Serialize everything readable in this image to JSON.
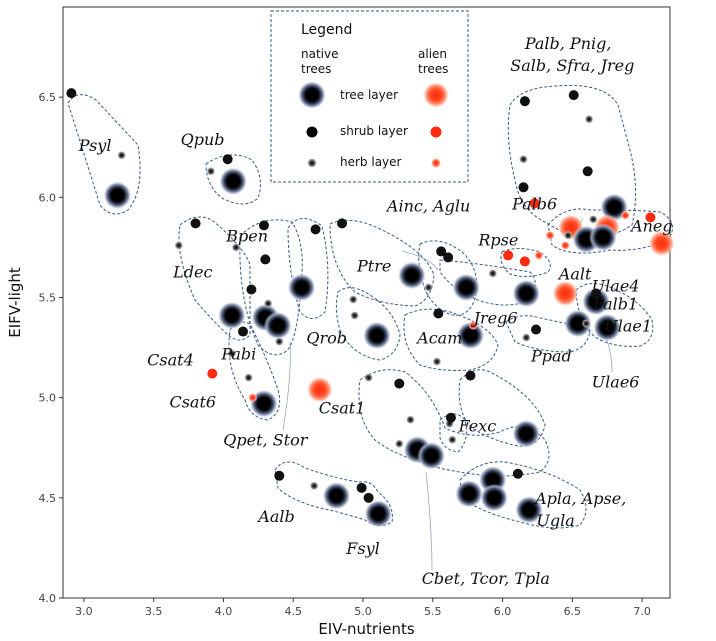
{
  "chart_data": {
    "type": "scatter",
    "xlabel": "EIV-nutrients",
    "ylabel": "EIFV-light",
    "xlim": [
      2.85,
      7.2
    ],
    "ylim": [
      4.0,
      6.95
    ],
    "xticks": [
      "3.0",
      "3.5",
      "4.0",
      "4.5",
      "5.0",
      "5.5",
      "6.0",
      "6.5",
      "7.0"
    ],
    "yticks": [
      "4.0",
      "4.5",
      "5.0",
      "5.5",
      "6.0",
      "6.5"
    ],
    "grid": false,
    "legend": {
      "title": "Legend",
      "col_native": "native\ntrees",
      "col_alien": "alien\ntrees",
      "rows": [
        "tree layer",
        "shrub layer",
        "herb layer"
      ],
      "placement": "top-center"
    },
    "colors": {
      "native": "#111111",
      "alien": "#ff2a10",
      "outline": "#3a5a8a"
    },
    "points": [
      {
        "x": 2.91,
        "y": 6.52,
        "layer": "shrub",
        "origin": "native"
      },
      {
        "x": 3.27,
        "y": 6.21,
        "layer": "herb",
        "origin": "native"
      },
      {
        "x": 3.24,
        "y": 6.01,
        "layer": "tree",
        "origin": "native"
      },
      {
        "x": 4.03,
        "y": 6.19,
        "layer": "shrub",
        "origin": "native"
      },
      {
        "x": 3.91,
        "y": 6.13,
        "layer": "herb",
        "origin": "native"
      },
      {
        "x": 4.07,
        "y": 6.08,
        "layer": "tree",
        "origin": "native"
      },
      {
        "x": 3.8,
        "y": 5.87,
        "layer": "shrub",
        "origin": "native"
      },
      {
        "x": 3.68,
        "y": 5.76,
        "layer": "herb",
        "origin": "native"
      },
      {
        "x": 4.06,
        "y": 5.41,
        "layer": "tree",
        "origin": "native"
      },
      {
        "x": 4.29,
        "y": 5.86,
        "layer": "shrub",
        "origin": "native"
      },
      {
        "x": 4.09,
        "y": 5.75,
        "layer": "herb",
        "origin": "native"
      },
      {
        "x": 4.3,
        "y": 5.69,
        "layer": "shrub",
        "origin": "native"
      },
      {
        "x": 4.2,
        "y": 5.54,
        "layer": "shrub",
        "origin": "native"
      },
      {
        "x": 4.32,
        "y": 5.47,
        "layer": "herb",
        "origin": "native"
      },
      {
        "x": 4.3,
        "y": 5.4,
        "layer": "tree",
        "origin": "native"
      },
      {
        "x": 4.39,
        "y": 5.36,
        "layer": "tree",
        "origin": "native"
      },
      {
        "x": 4.4,
        "y": 5.28,
        "layer": "herb",
        "origin": "native"
      },
      {
        "x": 4.14,
        "y": 5.33,
        "layer": "shrub",
        "origin": "native"
      },
      {
        "x": 4.06,
        "y": 5.22,
        "layer": "herb",
        "origin": "native"
      },
      {
        "x": 4.18,
        "y": 5.1,
        "layer": "herb",
        "origin": "native"
      },
      {
        "x": 4.29,
        "y": 4.97,
        "layer": "tree",
        "origin": "native"
      },
      {
        "x": 4.21,
        "y": 5.0,
        "layer": "herb",
        "origin": "alien"
      },
      {
        "x": 3.92,
        "y": 5.12,
        "layer": "shrub",
        "origin": "alien"
      },
      {
        "x": 4.66,
        "y": 5.84,
        "layer": "shrub",
        "origin": "native"
      },
      {
        "x": 4.56,
        "y": 5.55,
        "layer": "tree",
        "origin": "native"
      },
      {
        "x": 4.69,
        "y": 5.04,
        "layer": "tree",
        "origin": "alien"
      },
      {
        "x": 4.85,
        "y": 5.87,
        "layer": "shrub",
        "origin": "native"
      },
      {
        "x": 4.93,
        "y": 5.49,
        "layer": "herb",
        "origin": "native"
      },
      {
        "x": 4.94,
        "y": 5.41,
        "layer": "herb",
        "origin": "native"
      },
      {
        "x": 5.1,
        "y": 5.31,
        "layer": "tree",
        "origin": "native"
      },
      {
        "x": 5.35,
        "y": 5.61,
        "layer": "tree",
        "origin": "native"
      },
      {
        "x": 5.56,
        "y": 5.73,
        "layer": "shrub",
        "origin": "native"
      },
      {
        "x": 5.61,
        "y": 5.7,
        "layer": "shrub",
        "origin": "native"
      },
      {
        "x": 5.47,
        "y": 5.55,
        "layer": "herb",
        "origin": "native"
      },
      {
        "x": 5.74,
        "y": 5.55,
        "layer": "tree",
        "origin": "native"
      },
      {
        "x": 5.54,
        "y": 5.42,
        "layer": "shrub",
        "origin": "native"
      },
      {
        "x": 5.77,
        "y": 5.31,
        "layer": "tree",
        "origin": "native"
      },
      {
        "x": 5.79,
        "y": 5.36,
        "layer": "herb",
        "origin": "alien"
      },
      {
        "x": 5.53,
        "y": 5.18,
        "layer": "herb",
        "origin": "native"
      },
      {
        "x": 5.26,
        "y": 5.07,
        "layer": "shrub",
        "origin": "native"
      },
      {
        "x": 5.04,
        "y": 5.1,
        "layer": "herb",
        "origin": "native"
      },
      {
        "x": 5.34,
        "y": 4.89,
        "layer": "herb",
        "origin": "native"
      },
      {
        "x": 5.26,
        "y": 4.77,
        "layer": "herb",
        "origin": "native"
      },
      {
        "x": 5.39,
        "y": 4.74,
        "layer": "tree",
        "origin": "native"
      },
      {
        "x": 5.49,
        "y": 4.71,
        "layer": "tree",
        "origin": "native"
      },
      {
        "x": 5.77,
        "y": 5.11,
        "layer": "shrub",
        "origin": "native"
      },
      {
        "x": 5.63,
        "y": 4.9,
        "layer": "shrub",
        "origin": "native"
      },
      {
        "x": 5.62,
        "y": 4.87,
        "layer": "herb",
        "origin": "native"
      },
      {
        "x": 5.64,
        "y": 4.79,
        "layer": "herb",
        "origin": "native"
      },
      {
        "x": 6.17,
        "y": 4.82,
        "layer": "tree",
        "origin": "native"
      },
      {
        "x": 5.76,
        "y": 4.52,
        "layer": "tree",
        "origin": "native"
      },
      {
        "x": 5.93,
        "y": 4.59,
        "layer": "tree",
        "origin": "native"
      },
      {
        "x": 5.94,
        "y": 4.5,
        "layer": "tree",
        "origin": "native"
      },
      {
        "x": 6.11,
        "y": 4.62,
        "layer": "shrub",
        "origin": "native"
      },
      {
        "x": 6.19,
        "y": 4.44,
        "layer": "tree",
        "origin": "native"
      },
      {
        "x": 4.4,
        "y": 4.61,
        "layer": "shrub",
        "origin": "native"
      },
      {
        "x": 4.65,
        "y": 4.56,
        "layer": "herb",
        "origin": "native"
      },
      {
        "x": 4.81,
        "y": 4.51,
        "layer": "tree",
        "origin": "native"
      },
      {
        "x": 4.99,
        "y": 4.55,
        "layer": "shrub",
        "origin": "native"
      },
      {
        "x": 5.04,
        "y": 4.5,
        "layer": "shrub",
        "origin": "native"
      },
      {
        "x": 5.11,
        "y": 4.42,
        "layer": "tree",
        "origin": "native"
      },
      {
        "x": 6.16,
        "y": 6.48,
        "layer": "shrub",
        "origin": "native"
      },
      {
        "x": 6.51,
        "y": 6.51,
        "layer": "shrub",
        "origin": "native"
      },
      {
        "x": 6.62,
        "y": 6.39,
        "layer": "herb",
        "origin": "native"
      },
      {
        "x": 6.15,
        "y": 6.19,
        "layer": "herb",
        "origin": "native"
      },
      {
        "x": 6.61,
        "y": 6.13,
        "layer": "shrub",
        "origin": "native"
      },
      {
        "x": 6.15,
        "y": 6.05,
        "layer": "shrub",
        "origin": "native"
      },
      {
        "x": 6.23,
        "y": 5.97,
        "layer": "shrub",
        "origin": "alien"
      },
      {
        "x": 6.8,
        "y": 5.95,
        "layer": "tree",
        "origin": "native"
      },
      {
        "x": 6.88,
        "y": 5.91,
        "layer": "herb",
        "origin": "alien"
      },
      {
        "x": 7.06,
        "y": 5.9,
        "layer": "shrub",
        "origin": "alien"
      },
      {
        "x": 6.75,
        "y": 5.85,
        "layer": "tree",
        "origin": "alien"
      },
      {
        "x": 6.49,
        "y": 5.85,
        "layer": "tree",
        "origin": "alien"
      },
      {
        "x": 6.65,
        "y": 5.89,
        "layer": "herb",
        "origin": "native"
      },
      {
        "x": 6.6,
        "y": 5.79,
        "layer": "tree",
        "origin": "native"
      },
      {
        "x": 6.72,
        "y": 5.8,
        "layer": "tree",
        "origin": "native"
      },
      {
        "x": 6.34,
        "y": 5.81,
        "layer": "herb",
        "origin": "alien"
      },
      {
        "x": 6.47,
        "y": 5.81,
        "layer": "herb",
        "origin": "native"
      },
      {
        "x": 6.45,
        "y": 5.76,
        "layer": "herb",
        "origin": "alien"
      },
      {
        "x": 7.14,
        "y": 5.77,
        "layer": "tree",
        "origin": "alien"
      },
      {
        "x": 6.04,
        "y": 5.71,
        "layer": "shrub",
        "origin": "alien"
      },
      {
        "x": 6.16,
        "y": 5.68,
        "layer": "shrub",
        "origin": "alien"
      },
      {
        "x": 6.26,
        "y": 5.71,
        "layer": "herb",
        "origin": "alien"
      },
      {
        "x": 5.93,
        "y": 5.62,
        "layer": "herb",
        "origin": "native"
      },
      {
        "x": 6.17,
        "y": 5.52,
        "layer": "tree",
        "origin": "native"
      },
      {
        "x": 6.45,
        "y": 5.52,
        "layer": "tree",
        "origin": "alien"
      },
      {
        "x": 6.67,
        "y": 5.52,
        "layer": "shrub",
        "origin": "native"
      },
      {
        "x": 6.67,
        "y": 5.48,
        "layer": "tree",
        "origin": "native"
      },
      {
        "x": 6.6,
        "y": 5.37,
        "layer": "herb",
        "origin": "native"
      },
      {
        "x": 6.54,
        "y": 5.37,
        "layer": "tree",
        "origin": "native"
      },
      {
        "x": 6.75,
        "y": 5.35,
        "layer": "tree",
        "origin": "native"
      },
      {
        "x": 6.24,
        "y": 5.34,
        "layer": "shrub",
        "origin": "native"
      },
      {
        "x": 6.17,
        "y": 5.3,
        "layer": "herb",
        "origin": "native"
      }
    ],
    "labels": [
      {
        "text": "Psyl",
        "x": 3.08,
        "y": 6.23
      },
      {
        "text": "Qpub",
        "x": 3.85,
        "y": 6.26
      },
      {
        "text": "Bpen",
        "x": 4.17,
        "y": 5.78
      },
      {
        "text": "Ldec",
        "x": 3.78,
        "y": 5.6
      },
      {
        "text": "Pabi",
        "x": 4.11,
        "y": 5.19
      },
      {
        "text": "Csat4",
        "x": 3.62,
        "y": 5.16
      },
      {
        "text": "Csat6",
        "x": 3.78,
        "y": 4.95
      },
      {
        "text": "Qpet, Stor",
        "x": 4.3,
        "y": 4.76
      },
      {
        "text": "Qrob",
        "x": 4.74,
        "y": 5.27
      },
      {
        "text": "Csat1",
        "x": 4.85,
        "y": 4.92
      },
      {
        "text": "Ptre",
        "x": 5.08,
        "y": 5.63
      },
      {
        "text": "Ainc, Aglu",
        "x": 5.47,
        "y": 5.93
      },
      {
        "text": "Jreg6",
        "x": 5.95,
        "y": 5.37
      },
      {
        "text": "Acam",
        "x": 5.55,
        "y": 5.27
      },
      {
        "text": "Fexc",
        "x": 5.82,
        "y": 4.83
      },
      {
        "text": "Aalb",
        "x": 4.38,
        "y": 4.38
      },
      {
        "text": "Fsyl",
        "x": 5.0,
        "y": 4.22
      },
      {
        "text": "Cbet, Tcor, Tpla",
        "x": 5.88,
        "y": 4.07
      },
      {
        "text": "Apla, Apse,",
        "x": 6.56,
        "y": 4.47
      },
      {
        "text": "Ugla",
        "x": 6.38,
        "y": 4.36
      },
      {
        "text": "Palb, Pnig,",
        "x": 6.47,
        "y": 6.74
      },
      {
        "text": "Salb, Sfra, Jreg",
        "x": 6.5,
        "y": 6.63
      },
      {
        "text": "Palb6",
        "x": 6.23,
        "y": 5.94
      },
      {
        "text": "Rpse",
        "x": 5.97,
        "y": 5.76
      },
      {
        "text": "Aalt",
        "x": 6.52,
        "y": 5.59
      },
      {
        "text": "Aneg",
        "x": 7.07,
        "y": 5.83
      },
      {
        "text": "Ulae4",
        "x": 6.81,
        "y": 5.53
      },
      {
        "text": "Palb1",
        "x": 6.81,
        "y": 5.44
      },
      {
        "text": "Ulae1",
        "x": 6.9,
        "y": 5.33
      },
      {
        "text": "Ppad",
        "x": 6.35,
        "y": 5.18
      },
      {
        "text": "Ulae6",
        "x": 6.81,
        "y": 5.05
      }
    ]
  }
}
